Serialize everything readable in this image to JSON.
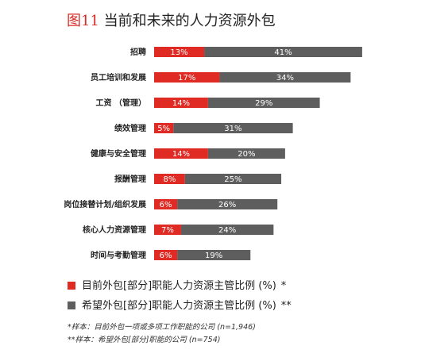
{
  "title": {
    "fig": "图11",
    "text": "当前和未来的人力资源外包"
  },
  "colors": {
    "current": "#e02a24",
    "wanted": "#5e5e5e",
    "label_text": "#ffffff"
  },
  "chart_data": {
    "type": "bar",
    "orientation": "horizontal",
    "stacked": true,
    "title": "当前和未来的人力资源外包",
    "categories": [
      "招聘",
      "员工培训和发展",
      "工资 （管理）",
      "绩效管理",
      "健康与安全管理",
      "报酬管理",
      "岗位接替计划/组织发展",
      "核心人力资源管理",
      "时间与考勤管理"
    ],
    "series": [
      {
        "name": "目前外包[部分]职能人力资源主管比例 (%)",
        "suffix": "*",
        "color": "#e02a24",
        "values": [
          13,
          17,
          14,
          5,
          14,
          8,
          6,
          7,
          6
        ]
      },
      {
        "name": "希望外包[部分]职能人力资源主管比例 (%)",
        "suffix": "**",
        "color": "#5e5e5e",
        "values": [
          41,
          34,
          29,
          31,
          20,
          25,
          26,
          24,
          19
        ]
      }
    ],
    "value_labels": [
      [
        "13%",
        "41%"
      ],
      [
        "17%",
        "34%"
      ],
      [
        "14%",
        "29%"
      ],
      [
        "5%",
        "31%"
      ],
      [
        "14%",
        "20%"
      ],
      [
        "8%",
        "25%"
      ],
      [
        "6%",
        "26%"
      ],
      [
        "7%",
        "24%"
      ],
      [
        "6%",
        "19%"
      ]
    ],
    "legend_position": "bottom"
  },
  "legend": [
    {
      "text": "目前外包[部分]职能人力资源主管比例 (%)",
      "suffix": "*"
    },
    {
      "text": "希望外包[部分]职能人力资源主管比例 (%)",
      "suffix": "**"
    }
  ],
  "footnotes": [
    "*样本：目前外包一项或多项工作职能的公司 (n=1,946)",
    "**样本：希望外包[部分]职能的公司 (n=754)"
  ]
}
